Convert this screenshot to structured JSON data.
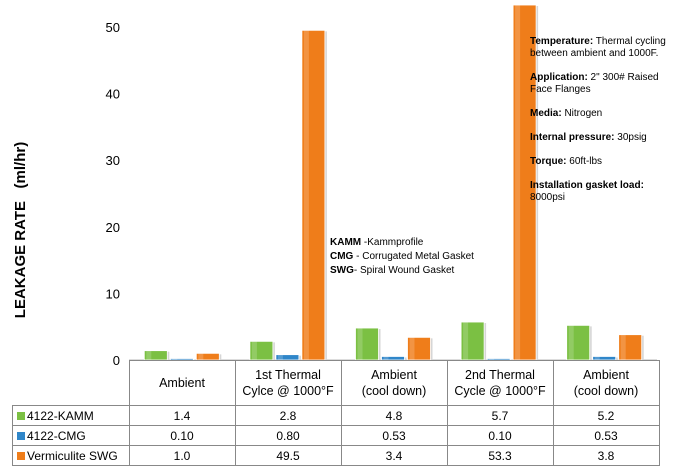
{
  "chart_data": {
    "type": "bar",
    "ylabel": "LEAKAGE RATE   (ml/hr)",
    "ylim": [
      0,
      55
    ],
    "yticks": [
      0,
      10,
      20,
      30,
      40,
      50
    ],
    "grid": false,
    "categories": [
      [
        "Ambient"
      ],
      [
        "1st Thermal",
        "Cylce @ 1000°F"
      ],
      [
        "Ambient",
        "(cool down)"
      ],
      [
        "2nd Thermal",
        "Cycle @ 1000°F"
      ],
      [
        "Ambient",
        "(cool down)"
      ]
    ],
    "series": [
      {
        "name": "4122-KAMM",
        "color": "#7bc043",
        "values": [
          1.4,
          2.8,
          4.8,
          5.7,
          5.2
        ],
        "labels": [
          "1.4",
          "2.8",
          "4.8",
          "5.7",
          "5.2"
        ]
      },
      {
        "name": "4122-CMG",
        "color": "#2f86c9",
        "values": [
          0.1,
          0.8,
          0.53,
          0.1,
          0.53
        ],
        "labels": [
          "0.10",
          "0.80",
          "0.53",
          "0.10",
          "0.53"
        ]
      },
      {
        "name": "Vermiculite SWG",
        "color": "#ef7d1a",
        "values": [
          1.0,
          49.5,
          3.4,
          53.3,
          3.8
        ],
        "labels": [
          "1.0",
          "49.5",
          "3.4",
          "53.3",
          "3.8"
        ]
      }
    ],
    "notes": [
      {
        "bold": "Temperature:",
        "text": " Thermal cycling between ambient and 1000F."
      },
      {
        "bold": "Application:",
        "text": " 2\" 300# Raised Face Flanges"
      },
      {
        "bold": "Media:",
        "text": " Nitrogen"
      },
      {
        "bold": "Internal pressure:",
        "text": " 30psig"
      },
      {
        "bold": "Torque:",
        "text": " 60ft-lbs"
      },
      {
        "bold": "Installation gasket load:",
        "text": " 8000psi"
      }
    ],
    "abbreviations": [
      {
        "bold": "KAMM",
        "text": " -Kammprofile"
      },
      {
        "bold": "CMG",
        "text": " - Corrugated Metal Gasket"
      },
      {
        "bold": "SWG",
        "text": "- Spiral Wound Gasket"
      }
    ]
  }
}
